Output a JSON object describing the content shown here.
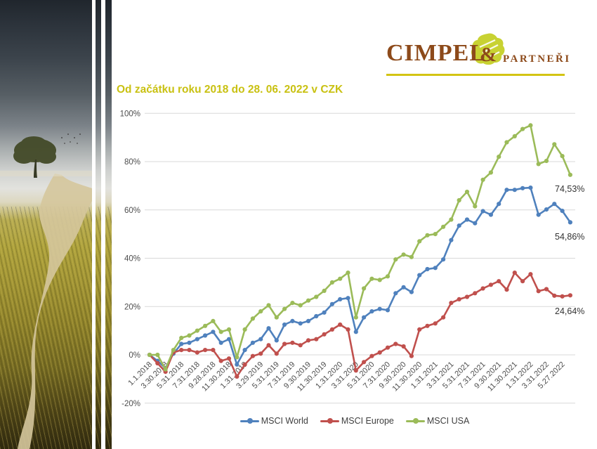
{
  "logo": {
    "cimpel": "CIMPEL",
    "ampersand": "&",
    "partneri": "PARTNEŘI",
    "text_color": "#8d4a1a",
    "leaf_color": "#c8d232",
    "underline_color": "#d3c413"
  },
  "title": {
    "text": "Od začátku roku 2018 do 28. 06. 2022 v CZK",
    "color": "#c9c112"
  },
  "chart_data": {
    "type": "line",
    "title": "Od začátku roku 2018 do 28. 06. 2022 v CZK",
    "currency": "CZK",
    "grid": true,
    "x_axis": {
      "visible_labels": [
        "1.1.2018",
        "3.30.2018",
        "5.31.2018",
        "7.31.2018",
        "9.28.2018",
        "11.30.2018",
        "1.31.2019",
        "3.29.2019",
        "5.31.2019",
        "7.31.2019",
        "9.30.2019",
        "11.30.2019",
        "1.31.2020",
        "3.31.2020",
        "5.31.2020",
        "7.31.2020",
        "9.30.2020",
        "11.30.2020",
        "1.31.2021",
        "3.31.2021",
        "5.31.2021",
        "7.31.2021",
        "9.30.2021",
        "11.30.2021",
        "1.31.2022",
        "3.31.2022",
        "5.27.2022"
      ],
      "label_interval": 2,
      "points_per_series": 54,
      "label_rotation_deg": -45
    },
    "y_axis": {
      "tick_labels": [
        "100%",
        "80%",
        "60%",
        "40%",
        "20%",
        "0%",
        "-20%"
      ],
      "tick_values": [
        100,
        80,
        60,
        40,
        20,
        0,
        -20
      ],
      "range": [
        -20,
        100
      ],
      "unit": "%"
    },
    "series": [
      {
        "name": "MSCI World",
        "color": "#4F81BD",
        "end_label": "54,86%",
        "values": [
          0,
          -2.5,
          -5.5,
          0.5,
          4.5,
          5,
          6.5,
          8,
          9.5,
          5,
          6.5,
          -4,
          2,
          5,
          6.5,
          11,
          6,
          12.5,
          14,
          13,
          14,
          16,
          17.5,
          21,
          23,
          23.5,
          9.5,
          15.5,
          18,
          19,
          18.5,
          25.5,
          28,
          26,
          33,
          35.5,
          36,
          39.5,
          47.5,
          53.5,
          56,
          54.5,
          59.5,
          58,
          62.5,
          68.3,
          68.3,
          69,
          69.2,
          58,
          60.2,
          62.5,
          59.6,
          54.86
        ]
      },
      {
        "name": "MSCI Europe",
        "color": "#C0504D",
        "end_label": "24,64%",
        "values": [
          0,
          -3.5,
          -7,
          1,
          2,
          2,
          1,
          2,
          2,
          -2.5,
          -1.5,
          -9,
          -4,
          -0.5,
          0.5,
          4,
          0.5,
          4.5,
          5,
          4,
          6,
          6.5,
          8.5,
          10.5,
          12.5,
          10.5,
          -6.5,
          -3,
          -0.5,
          1,
          3,
          4.5,
          3.5,
          -0.5,
          10.5,
          12,
          13,
          15.5,
          21.5,
          23,
          24,
          25.5,
          27.5,
          29,
          30.5,
          27,
          34,
          30.5,
          33.4,
          26.4,
          27.2,
          24.5,
          24.2,
          24.64
        ]
      },
      {
        "name": "MSCI USA",
        "color": "#9BBB59",
        "end_label": "74,53%",
        "values": [
          0,
          0,
          -6,
          2,
          7,
          8,
          10,
          12,
          14,
          9.5,
          10.5,
          -1,
          10.5,
          15,
          18,
          20.5,
          15.5,
          19,
          21.5,
          20.5,
          22.5,
          24,
          26.5,
          30,
          31.5,
          34,
          15.5,
          27.5,
          31.5,
          31,
          32.5,
          39.5,
          41.5,
          40.5,
          47,
          49.5,
          50,
          53,
          56,
          64,
          67.5,
          61.5,
          72.5,
          75.5,
          82,
          88,
          90.5,
          93.5,
          95,
          79,
          80.3,
          87.2,
          82.3,
          74.53
        ]
      }
    ],
    "legend": {
      "position": "bottom",
      "items": [
        "MSCI World",
        "MSCI Europe",
        "MSCI USA"
      ]
    },
    "style": {
      "gridline_color": "#d9d9d9",
      "tick_label_color": "#4d4d4d",
      "marker": "circle"
    }
  }
}
